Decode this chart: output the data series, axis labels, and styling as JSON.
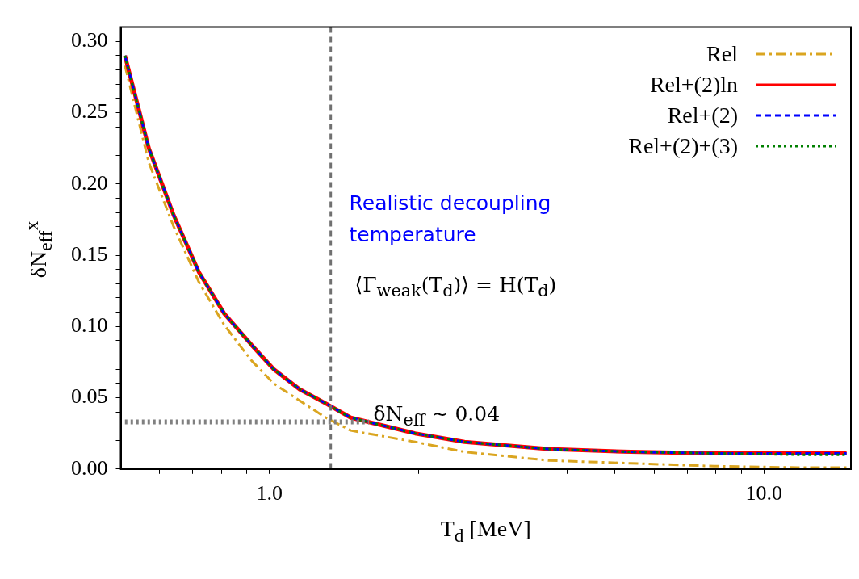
{
  "chart_data": {
    "type": "line",
    "xlabel": "T$_{d}$ [MeV]",
    "ylabel": "δN$_{eff}$$^{x}$",
    "annotations": [
      "Realistic decoupling temperature",
      "⟨Γ$_{weak}$(T$_{d}$)⟩ = H(T$_{d}$)",
      "δN$_{eff}$ ∼ 0.04"
    ],
    "x": [
      0.51,
      0.57,
      0.64,
      0.72,
      0.81,
      0.92,
      1.02,
      1.15,
      1.3,
      1.46,
      1.97,
      2.48,
      3.66,
      5.38,
      7.93,
      11.7,
      14.7
    ],
    "series": [
      {
        "name": "Rel",
        "color": "#daa520",
        "line_style": "dashdot",
        "values": [
          0.283,
          0.215,
          0.17,
          0.131,
          0.101,
          0.076,
          0.06,
          0.048,
          0.036,
          0.027,
          0.019,
          0.012,
          0.006,
          0.004,
          0.002,
          0.001,
          0.001
        ]
      },
      {
        "name": "Rel+(2)ln",
        "color": "#ff0000",
        "line_style": "solid",
        "values": [
          0.29,
          0.225,
          0.178,
          0.138,
          0.109,
          0.087,
          0.07,
          0.056,
          0.046,
          0.036,
          0.025,
          0.019,
          0.014,
          0.012,
          0.011,
          0.011,
          0.011
        ]
      },
      {
        "name": "Rel+(2)",
        "color": "#0000ff",
        "line_style": "dashed",
        "values": [
          0.29,
          0.225,
          0.178,
          0.138,
          0.109,
          0.087,
          0.07,
          0.056,
          0.046,
          0.036,
          0.025,
          0.019,
          0.014,
          0.012,
          0.011,
          0.011,
          0.011
        ]
      },
      {
        "name": "Rel+(2)+(3)",
        "color": "#008000",
        "line_style": "dotted",
        "values": [
          0.29,
          0.225,
          0.178,
          0.138,
          0.109,
          0.087,
          0.07,
          0.056,
          0.046,
          0.036,
          0.025,
          0.019,
          0.014,
          0.012,
          0.011,
          0.01,
          0.01
        ]
      },
      {
        "color": "#808080",
        "line_style": "dotted",
        "x": [
          0.51,
          1.59
        ],
        "values": [
          0.033,
          0.033
        ]
      }
    ],
    "ref_lines": [
      {
        "axis": "x",
        "value": 1.33,
        "color": "#707070",
        "line_style": "dashed"
      }
    ],
    "log": "x",
    "xlim": [
      0.5,
      15
    ],
    "xticks": [
      {
        "value": 0.6,
        "label": null
      },
      {
        "value": 0.7,
        "label": null
      },
      {
        "value": 0.8,
        "label": null
      },
      {
        "value": 0.9,
        "label": null
      },
      {
        "value": 1,
        "label": "1.0"
      },
      {
        "value": 2,
        "label": null
      },
      {
        "value": 3,
        "label": null
      },
      {
        "value": 4,
        "label": null
      },
      {
        "value": 5,
        "label": null
      },
      {
        "value": 6,
        "label": null
      },
      {
        "value": 7,
        "label": null
      },
      {
        "value": 8,
        "label": null
      },
      {
        "value": 9,
        "label": null
      },
      {
        "value": 10,
        "label": "10.0"
      }
    ],
    "ylim": [
      0,
      0.31
    ],
    "yticks": [
      {
        "value": 0,
        "label": "0.00"
      },
      {
        "value": 0.01,
        "label": null
      },
      {
        "value": 0.02,
        "label": null
      },
      {
        "value": 0.03,
        "label": null
      },
      {
        "value": 0.04,
        "label": null
      },
      {
        "value": 0.05,
        "label": "0.05"
      },
      {
        "value": 0.06,
        "label": null
      },
      {
        "value": 0.07,
        "label": null
      },
      {
        "value": 0.08,
        "label": null
      },
      {
        "value": 0.09,
        "label": null
      },
      {
        "value": 0.1,
        "label": "0.10"
      },
      {
        "value": 0.11,
        "label": null
      },
      {
        "value": 0.12,
        "label": null
      },
      {
        "value": 0.13,
        "label": null
      },
      {
        "value": 0.14,
        "label": null
      },
      {
        "value": 0.15,
        "label": "0.15"
      },
      {
        "value": 0.16,
        "label": null
      },
      {
        "value": 0.17,
        "label": null
      },
      {
        "value": 0.18,
        "label": null
      },
      {
        "value": 0.19,
        "label": null
      },
      {
        "value": 0.2,
        "label": "0.20"
      },
      {
        "value": 0.21,
        "label": null
      },
      {
        "value": 0.22,
        "label": null
      },
      {
        "value": 0.23,
        "label": null
      },
      {
        "value": 0.24,
        "label": null
      },
      {
        "value": 0.25,
        "label": "0.25"
      },
      {
        "value": 0.26,
        "label": null
      },
      {
        "value": 0.27,
        "label": null
      },
      {
        "value": 0.28,
        "label": null
      },
      {
        "value": 0.29,
        "label": null
      },
      {
        "value": 0.3,
        "label": "0.30"
      }
    ],
    "grid": false,
    "legend": "top right",
    "marker": "none"
  }
}
